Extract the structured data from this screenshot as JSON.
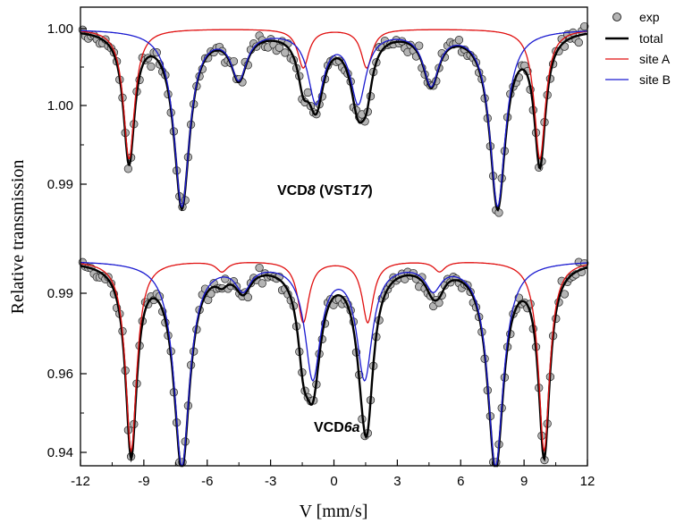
{
  "chart_data": {
    "type": "scatter",
    "xlabel": "V [mm/s]",
    "ylabel": "Relative transmission",
    "x_ticks": [
      "-12",
      "-9",
      "-6",
      "-3",
      "0",
      "3",
      "6",
      "9",
      "12"
    ],
    "y_tick_labels": [
      "1.00",
      "1.00",
      "0.99",
      "0.99",
      "0.96",
      "0.94"
    ],
    "xlim": [
      -12,
      12
    ],
    "legend": [
      "exp",
      "total",
      "site A",
      "site B"
    ],
    "legend_position": "outside-top-right",
    "colors": {
      "exp": "#b4b4b4",
      "total": "#000000",
      "site_a": "#e01010",
      "site_b": "#1a1ad0"
    },
    "spectra": [
      {
        "label_main": "VCD",
        "label_italic": "8",
        "label_paren_open": " (VST",
        "label_paren_italic": "17",
        "label_paren_close": ")",
        "site_a_lines": [
          {
            "v": -9.7,
            "depth": 0.74
          },
          {
            "v": -1.45,
            "depth": 0.22
          },
          {
            "v": 1.55,
            "depth": 0.22
          },
          {
            "v": 9.75,
            "depth": 0.74
          }
        ],
        "site_b_lines": [
          {
            "v": -7.2,
            "depth": 1.0
          },
          {
            "v": -4.5,
            "depth": 0.26
          },
          {
            "v": -0.85,
            "depth": 0.4
          },
          {
            "v": 1.15,
            "depth": 0.4
          },
          {
            "v": 4.6,
            "depth": 0.3
          },
          {
            "v": 7.75,
            "depth": 1.0
          }
        ]
      },
      {
        "label_main": "VCD",
        "label_italic": "6a",
        "site_a_lines": [
          {
            "v": -9.6,
            "depth": 0.93
          },
          {
            "v": -5.3,
            "depth": 0.05
          },
          {
            "v": -1.45,
            "depth": 0.3
          },
          {
            "v": 1.6,
            "depth": 0.3
          },
          {
            "v": 5.0,
            "depth": 0.05
          },
          {
            "v": 9.95,
            "depth": 0.93
          }
        ],
        "site_b_lines": [
          {
            "v": -7.2,
            "depth": 1.0
          },
          {
            "v": -4.3,
            "depth": 0.12
          },
          {
            "v": -1.0,
            "depth": 0.56
          },
          {
            "v": 1.45,
            "depth": 0.56
          },
          {
            "v": 4.7,
            "depth": 0.12
          },
          {
            "v": 7.65,
            "depth": 1.0
          }
        ]
      }
    ]
  }
}
